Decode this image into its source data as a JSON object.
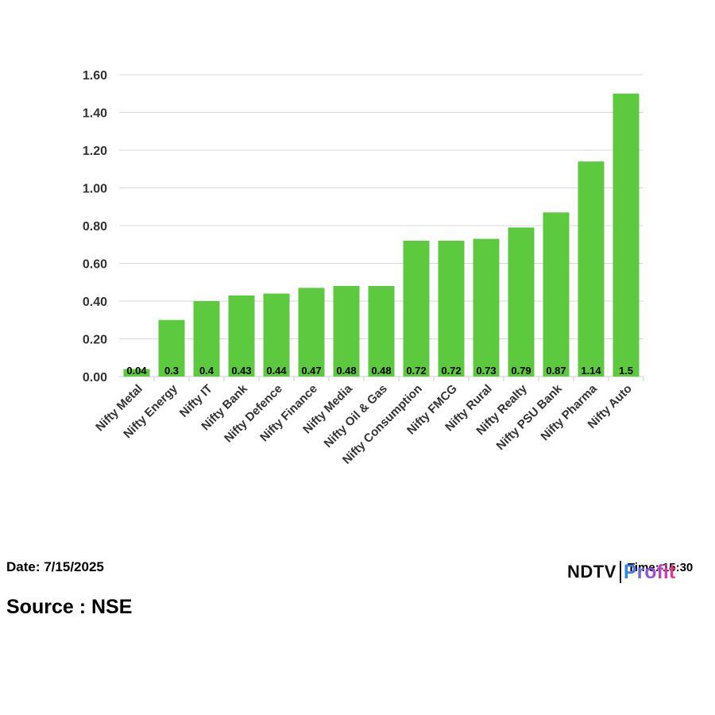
{
  "chart_data": {
    "type": "bar",
    "title": "",
    "xlabel": "",
    "ylabel": "",
    "categories": [
      "Nifty Metal",
      "Nifty Energy",
      "Nifty IT",
      "Nifty Bank",
      "Nifty Defence",
      "Nifty Finance",
      "Nifty Media",
      "Nifty Oil & Gas",
      "Nifty Consumption",
      "Nifty FMCG",
      "Nifty Rural",
      "Nifty Realty",
      "Nifty PSU Bank",
      "Nifty Pharma",
      "Nifty Auto"
    ],
    "values": [
      0.04,
      0.3,
      0.4,
      0.43,
      0.44,
      0.47,
      0.48,
      0.48,
      0.72,
      0.72,
      0.73,
      0.79,
      0.87,
      1.14,
      1.5
    ],
    "data_labels": [
      "0.04",
      "0.3",
      "0.4",
      "0.43",
      "0.44",
      "0.47",
      "0.48",
      "0.48",
      "0.72",
      "0.72",
      "0.73",
      "0.79",
      "0.87",
      "1.14",
      "1.5"
    ],
    "ylim": [
      0,
      1.6
    ],
    "yticks": [
      "0.00",
      "0.20",
      "0.40",
      "0.60",
      "0.80",
      "1.00",
      "1.20",
      "1.40",
      "1.60"
    ],
    "bar_color": "#5cc93f",
    "grid": true,
    "legend": "none"
  },
  "footer": {
    "date": "Date: 7/15/2025",
    "source": "Source : NSE",
    "time": "Time: 15:30"
  },
  "logo": {
    "ndtv": "NDTV",
    "profit": "Profit"
  }
}
